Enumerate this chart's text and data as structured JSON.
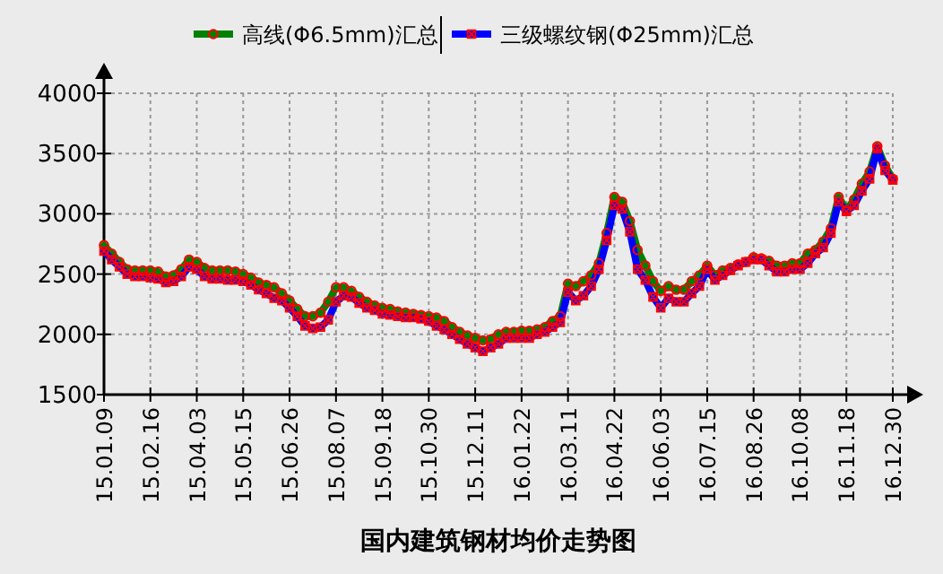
{
  "chart_data": {
    "type": "line",
    "title": "国内建筑钢材均价走势图",
    "categories": [
      "15.01.09",
      null,
      null,
      null,
      null,
      null,
      "15.02.16",
      null,
      null,
      null,
      null,
      null,
      "15.04.03",
      null,
      null,
      null,
      null,
      null,
      "15.05.15",
      null,
      null,
      null,
      null,
      null,
      "15.06.26",
      null,
      null,
      null,
      null,
      null,
      "15.08.07",
      null,
      null,
      null,
      null,
      null,
      "15.09.18",
      null,
      null,
      null,
      null,
      null,
      "15.10.30",
      null,
      null,
      null,
      null,
      null,
      "15.12.11",
      null,
      null,
      null,
      null,
      null,
      "16.01.22",
      null,
      null,
      null,
      null,
      null,
      "16.03.11",
      null,
      null,
      null,
      null,
      null,
      "16.04.22",
      null,
      null,
      null,
      null,
      null,
      "16.06.03",
      null,
      null,
      null,
      null,
      null,
      "16.07.15",
      null,
      null,
      null,
      null,
      null,
      "16.08.26",
      null,
      null,
      null,
      null,
      null,
      "16.10.08",
      null,
      null,
      null,
      null,
      null,
      "16.11.18",
      null,
      null,
      null,
      null,
      null,
      "16.12.30"
    ],
    "series": [
      {
        "name": "高线(Φ6.5mm)汇总",
        "color": "#008000",
        "marker": "circle",
        "values": [
          2740,
          2670,
          2600,
          2540,
          2530,
          2530,
          2530,
          2520,
          2480,
          2490,
          2540,
          2620,
          2600,
          2550,
          2530,
          2530,
          2530,
          2520,
          2500,
          2470,
          2430,
          2410,
          2390,
          2340,
          2280,
          2210,
          2150,
          2150,
          2180,
          2270,
          2390,
          2390,
          2360,
          2310,
          2270,
          2240,
          2220,
          2210,
          2190,
          2180,
          2170,
          2160,
          2150,
          2140,
          2110,
          2060,
          2020,
          1990,
          1970,
          1950,
          1960,
          2000,
          2020,
          2020,
          2030,
          2030,
          2040,
          2060,
          2110,
          2150,
          2420,
          2400,
          2440,
          2490,
          2590,
          2840,
          3140,
          3100,
          2940,
          2700,
          2570,
          2440,
          2360,
          2400,
          2370,
          2370,
          2440,
          2490,
          2570,
          2490,
          2530,
          2550,
          2580,
          2600,
          2640,
          2630,
          2610,
          2570,
          2570,
          2590,
          2590,
          2670,
          2700,
          2770,
          2880,
          3140,
          3030,
          3120,
          3250,
          3350,
          3560,
          3400,
          3290
        ]
      },
      {
        "name": "三级螺纹钢(Φ25mm)汇总",
        "color": "#0000ff",
        "marker": "cross",
        "values": [
          2690,
          2620,
          2560,
          2500,
          2480,
          2480,
          2470,
          2460,
          2430,
          2440,
          2480,
          2560,
          2540,
          2480,
          2460,
          2460,
          2450,
          2450,
          2440,
          2410,
          2370,
          2340,
          2300,
          2280,
          2220,
          2150,
          2070,
          2050,
          2060,
          2120,
          2270,
          2320,
          2310,
          2260,
          2220,
          2200,
          2170,
          2160,
          2150,
          2140,
          2140,
          2130,
          2110,
          2070,
          2040,
          2000,
          1960,
          1920,
          1890,
          1860,
          1890,
          1920,
          1970,
          1970,
          1970,
          1970,
          2000,
          2020,
          2060,
          2100,
          2350,
          2280,
          2320,
          2400,
          2540,
          2780,
          3070,
          3040,
          2850,
          2540,
          2450,
          2310,
          2220,
          2300,
          2270,
          2270,
          2340,
          2400,
          2540,
          2450,
          2490,
          2530,
          2570,
          2600,
          2620,
          2620,
          2570,
          2520,
          2520,
          2540,
          2540,
          2590,
          2670,
          2720,
          2840,
          3100,
          3020,
          3070,
          3190,
          3290,
          3540,
          3360,
          3280
        ]
      }
    ],
    "ylim": [
      1500,
      4000
    ],
    "yticks": [
      1500,
      2000,
      2500,
      3000,
      3500,
      4000
    ],
    "grid": true,
    "legend": "top",
    "line_style": "solid"
  }
}
